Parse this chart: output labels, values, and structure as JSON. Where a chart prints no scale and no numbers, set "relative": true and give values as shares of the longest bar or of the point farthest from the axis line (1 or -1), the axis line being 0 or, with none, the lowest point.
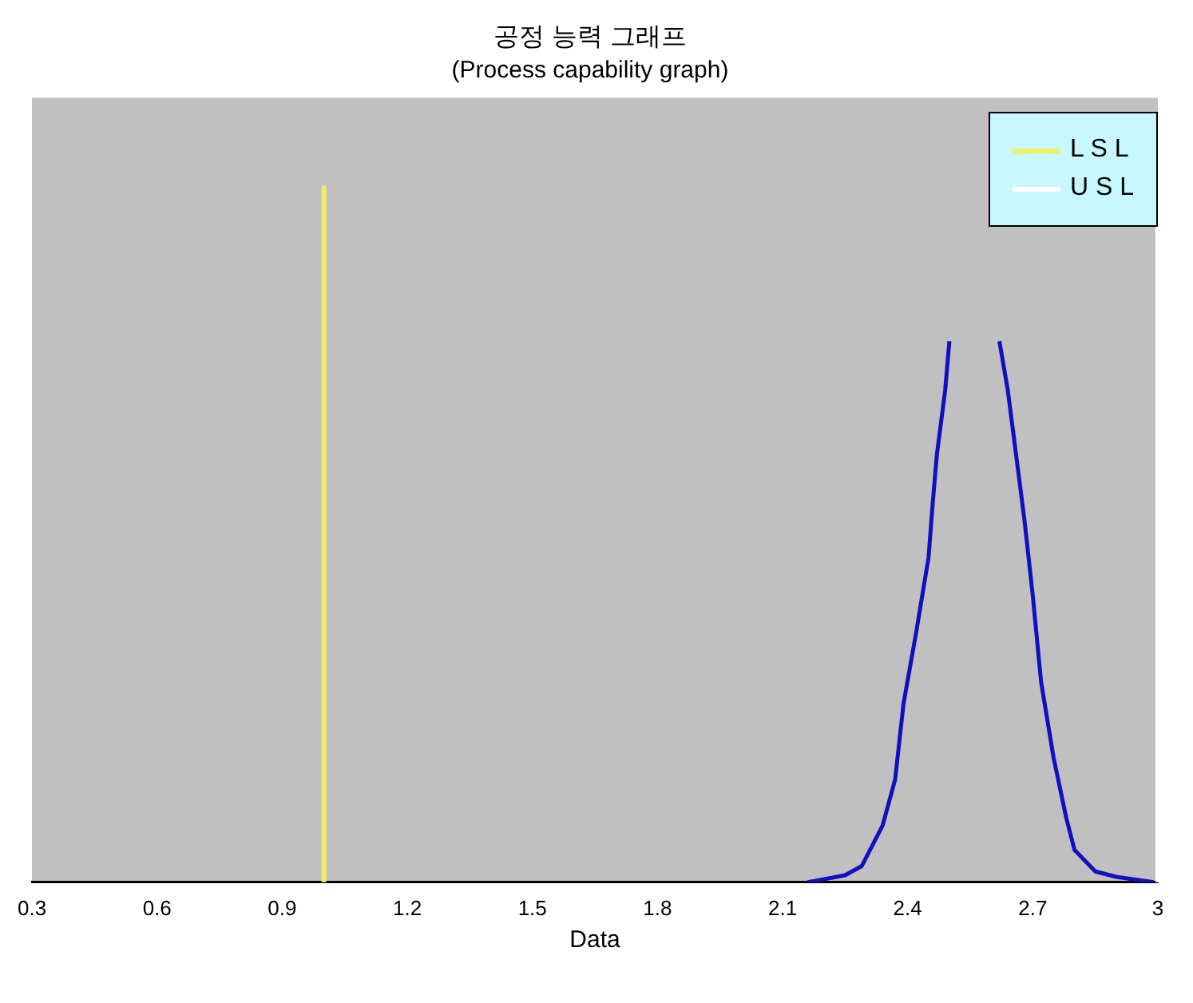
{
  "chart_data": {
    "type": "line",
    "title": "공정 능력 그래프",
    "subtitle": "(Process capability graph)",
    "xlabel": "Data",
    "relative": true,
    "xlim": [
      0.3,
      3
    ],
    "xticks": [
      0.3,
      0.6,
      0.9,
      1.2,
      1.5,
      1.8,
      2.1,
      2.4,
      2.7,
      3
    ],
    "grid": false,
    "legend": "top right",
    "marker": "none",
    "line_style": "solid",
    "series": [
      {
        "color": "#1010c0",
        "x": [
          2.16,
          2.25,
          2.29,
          2.34,
          2.37,
          2.39,
          2.42,
          2.45,
          2.46,
          2.47,
          2.49,
          2.5,
          2.55,
          2.62,
          2.64,
          2.66,
          2.68,
          2.7,
          2.72,
          2.75,
          2.78,
          2.8,
          2.85,
          2.9,
          2.99
        ],
        "values": [
          0,
          0.013,
          0.03,
          0.105,
          0.19,
          0.33,
          0.46,
          0.6,
          0.7,
          0.79,
          0.91,
          1,
          null,
          1,
          0.91,
          0.79,
          0.67,
          0.53,
          0.37,
          0.23,
          0.12,
          0.06,
          0.02,
          0.01,
          0
        ]
      }
    ],
    "ref_lines": [
      {
        "axis": "x",
        "value": 1,
        "label": "L S L",
        "color": "#f0f060"
      },
      {
        "axis": "x",
        "value": 3,
        "label": "U S L",
        "color": "#ffffff"
      }
    ]
  }
}
